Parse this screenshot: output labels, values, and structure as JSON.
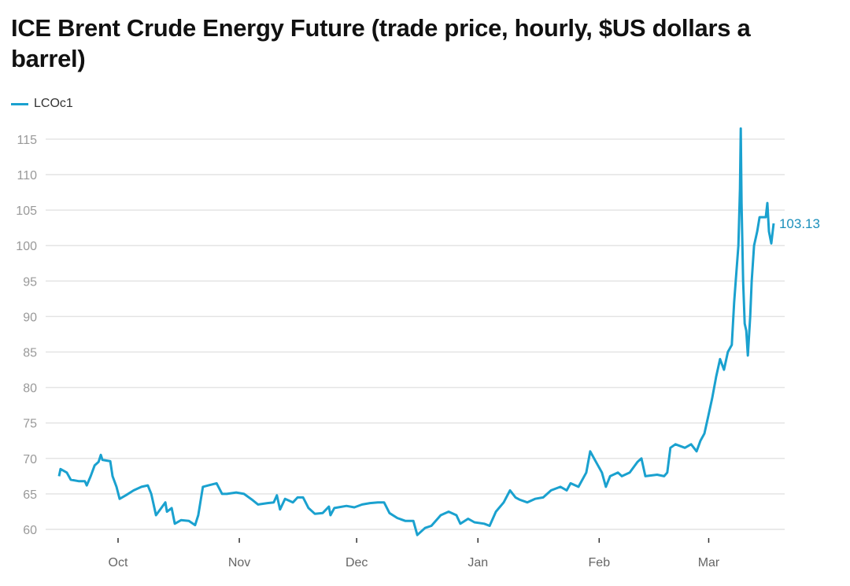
{
  "chart_data": {
    "type": "line",
    "title": "ICE Brent Crude Energy Future (trade price, hourly, $US dollars a barrel)",
    "xlabel": "",
    "ylabel": "",
    "x_units": "days since Oct 1",
    "ylim": [
      60,
      115
    ],
    "yticks": [
      60,
      65,
      70,
      75,
      80,
      85,
      90,
      95,
      100,
      105,
      110,
      115
    ],
    "xticks": [
      {
        "label": "Oct",
        "x": 0
      },
      {
        "label": "Nov",
        "x": 31
      },
      {
        "label": "Dec",
        "x": 61
      },
      {
        "label": "Jan",
        "x": 92
      },
      {
        "label": "Feb",
        "x": 123
      },
      {
        "label": "Mar",
        "x": 151
      }
    ],
    "grid": true,
    "legend": "top-left",
    "color": "#1aa1cf",
    "end_label": "103.13",
    "series": [
      {
        "name": "LCOc1",
        "x": [
          -15.1,
          -14.7,
          -13.1,
          -12.1,
          -10.1,
          -8.5,
          -8.0,
          -7.0,
          -6.0,
          -5.0,
          -4.4,
          -4.0,
          -2.0,
          -1.4,
          -0.4,
          0.4,
          2.0,
          4.0,
          6.0,
          7.6,
          8.5,
          9.7,
          12.1,
          12.5,
          13.7,
          14.5,
          16.1,
          18.1,
          19.7,
          20.5,
          21.7,
          23.1,
          25.2,
          26.6,
          27.8,
          30.2,
          32.2,
          34.2,
          35.8,
          38.2,
          39.8,
          40.6,
          41.4,
          42.7,
          44.7,
          45.9,
          47.3,
          48.7,
          50.3,
          52.3,
          53.9,
          54.3,
          55.3,
          58.4,
          60.4,
          62.4,
          64.4,
          66.4,
          68.0,
          69.4,
          71.4,
          73.4,
          75.5,
          76.5,
          78.5,
          80.1,
          82.5,
          84.5,
          86.5,
          87.5,
          89.5,
          91.1,
          93.6,
          95.0,
          96.6,
          98.6,
          100.2,
          101.6,
          102.6,
          104.6,
          106.6,
          108.7,
          110.7,
          113.1,
          114.7,
          115.7,
          117.7,
          119.7,
          120.7,
          121.7,
          122.7,
          123.7,
          124.7,
          125.8,
          127.8,
          128.8,
          130.8,
          132.8,
          133.8,
          134.8,
          137.8,
          139.6,
          140.4,
          141.2,
          142.5,
          144.9,
          146.5,
          147.9,
          148.9,
          149.9,
          150.9,
          151.9,
          152.9,
          153.9,
          154.9,
          155.9,
          156.9,
          157.5,
          157.9,
          158.6,
          159.0,
          159.2,
          159.4,
          159.8,
          160.2,
          160.6,
          161.0,
          161.6,
          162.0,
          162.6,
          163.4,
          164.0,
          165.6,
          166.0,
          166.4,
          167.0,
          167.6
        ],
        "y": [
          67.5,
          68.5,
          68,
          67,
          66.8,
          66.8,
          66.2,
          67.5,
          69,
          69.5,
          70.5,
          69.8,
          69.6,
          67.5,
          66,
          64.3,
          64.8,
          65.5,
          66,
          66.2,
          65,
          62,
          63.8,
          62.5,
          63,
          60.8,
          61.3,
          61.2,
          60.6,
          62,
          66,
          66.2,
          66.5,
          65,
          65,
          65.2,
          65,
          64.2,
          63.5,
          63.7,
          63.8,
          64.8,
          62.8,
          64.3,
          63.8,
          64.5,
          64.5,
          63,
          62.2,
          62.3,
          63.2,
          62,
          63,
          63.3,
          63.1,
          63.5,
          63.7,
          63.8,
          63.8,
          62.3,
          61.6,
          61.2,
          61.2,
          59.2,
          60.2,
          60.5,
          62,
          62.5,
          62,
          60.8,
          61.5,
          61,
          60.8,
          60.5,
          62.5,
          63.8,
          65.5,
          64.5,
          64.2,
          63.8,
          64.3,
          64.5,
          65.5,
          66,
          65.5,
          66.5,
          66,
          68,
          71,
          70,
          69,
          68,
          66,
          67.5,
          68,
          67.5,
          68,
          69.5,
          70,
          67.5,
          67.7,
          67.5,
          68,
          71.5,
          72,
          71.5,
          72,
          71,
          72.5,
          73.5,
          76,
          78.5,
          81.5,
          84,
          82.5,
          85,
          86,
          92,
          95,
          100,
          108,
          116.5,
          106,
          95,
          89,
          88,
          84.5,
          90,
          95,
          100,
          102,
          104,
          104,
          106,
          102,
          100.3,
          103.13
        ]
      }
    ]
  }
}
